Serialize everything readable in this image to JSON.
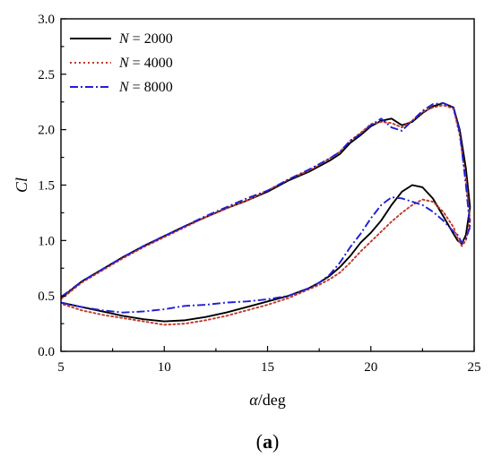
{
  "chart_data": {
    "type": "line",
    "caption": "(a)",
    "xlabel": {
      "symbol": "α",
      "unit": "/deg"
    },
    "ylabel": "Cl",
    "xlim": [
      5,
      25
    ],
    "ylim": [
      0.0,
      3.0
    ],
    "xticks": [
      5,
      10,
      15,
      20,
      25
    ],
    "xtick_labels": [
      "5",
      "10",
      "15",
      "20",
      "25"
    ],
    "yticks": [
      0.0,
      0.5,
      1.0,
      1.5,
      2.0,
      2.5,
      3.0
    ],
    "ytick_labels": [
      "0.0",
      "0.5",
      "1.0",
      "1.5",
      "2.0",
      "2.5",
      "3.0"
    ],
    "grid": false,
    "legend_position": "top-left",
    "series": [
      {
        "name": "N = 2000",
        "legend_var": "N",
        "legend_value": "= 2000",
        "color": "#000000",
        "dash": "solid",
        "upstroke": {
          "x": [
            5.0,
            6,
            7,
            8,
            9,
            10,
            11,
            12,
            13,
            14,
            15,
            16,
            17,
            18,
            18.5,
            19,
            19.5,
            20,
            20.5,
            21,
            21.5,
            22,
            22.5,
            23,
            23.5,
            24.0,
            24.3,
            24.6,
            24.8
          ],
          "y": [
            0.48,
            0.63,
            0.74,
            0.85,
            0.95,
            1.04,
            1.13,
            1.21,
            1.29,
            1.36,
            1.44,
            1.54,
            1.62,
            1.72,
            1.78,
            1.88,
            1.95,
            2.03,
            2.08,
            2.1,
            2.04,
            2.07,
            2.15,
            2.21,
            2.24,
            2.2,
            2.0,
            1.65,
            1.3
          ]
        },
        "downstroke": {
          "x": [
            24.8,
            24.6,
            24.4,
            24.2,
            24.0,
            23.5,
            23.0,
            22.5,
            22.0,
            21.5,
            21.0,
            20.5,
            20.0,
            19.5,
            19.0,
            18.5,
            18.0,
            17.5,
            17.0,
            16.0,
            15.0,
            14.0,
            13.0,
            12.0,
            11.0,
            10.0,
            9.0,
            8.0,
            7.0,
            6.0,
            5.0
          ],
          "y": [
            1.3,
            1.05,
            0.97,
            1.0,
            1.06,
            1.22,
            1.38,
            1.48,
            1.5,
            1.44,
            1.32,
            1.18,
            1.07,
            0.98,
            0.86,
            0.76,
            0.68,
            0.62,
            0.57,
            0.5,
            0.45,
            0.4,
            0.35,
            0.31,
            0.28,
            0.27,
            0.29,
            0.32,
            0.36,
            0.4,
            0.44
          ]
        }
      },
      {
        "name": "N = 4000",
        "legend_var": "N",
        "legend_value": "= 4000",
        "color": "#c0392b",
        "dash": "dotted",
        "upstroke": {
          "x": [
            5.0,
            6,
            7,
            8,
            9,
            10,
            11,
            12,
            13,
            14,
            15,
            16,
            17,
            18,
            18.5,
            19,
            19.5,
            20,
            20.5,
            21,
            21.5,
            22,
            22.5,
            23,
            23.5,
            24.0,
            24.3,
            24.6,
            24.8
          ],
          "y": [
            0.47,
            0.62,
            0.73,
            0.84,
            0.94,
            1.03,
            1.12,
            1.21,
            1.29,
            1.36,
            1.45,
            1.55,
            1.63,
            1.74,
            1.8,
            1.9,
            1.97,
            2.05,
            2.07,
            2.06,
            2.02,
            2.08,
            2.16,
            2.2,
            2.22,
            2.19,
            1.95,
            1.55,
            1.18
          ]
        },
        "downstroke": {
          "x": [
            24.8,
            24.6,
            24.4,
            24.2,
            24.0,
            23.5,
            23.0,
            22.5,
            22.0,
            21.5,
            21.0,
            20.5,
            20.0,
            19.5,
            19.0,
            18.5,
            18.0,
            17.5,
            17.0,
            16.0,
            15.0,
            14.0,
            13.0,
            12.0,
            11.0,
            10.0,
            9.0,
            8.0,
            7.0,
            6.0,
            5.0
          ],
          "y": [
            1.18,
            1.0,
            0.95,
            1.02,
            1.12,
            1.26,
            1.35,
            1.37,
            1.32,
            1.25,
            1.17,
            1.08,
            0.99,
            0.9,
            0.8,
            0.71,
            0.65,
            0.6,
            0.56,
            0.48,
            0.42,
            0.37,
            0.32,
            0.28,
            0.25,
            0.24,
            0.27,
            0.3,
            0.33,
            0.37,
            0.43
          ]
        }
      },
      {
        "name": "N = 8000",
        "legend_var": "N",
        "legend_value": "= 8000",
        "color": "#1f1fd6",
        "dash": "dashdot",
        "upstroke": {
          "x": [
            5.0,
            6,
            7,
            8,
            9,
            10,
            11,
            12,
            13,
            14,
            15,
            16,
            17,
            18,
            18.5,
            19,
            19.5,
            20,
            20.5,
            21,
            21.5,
            22,
            22.5,
            23,
            23.5,
            24.0,
            24.3,
            24.6,
            24.8
          ],
          "y": [
            0.49,
            0.63,
            0.74,
            0.85,
            0.95,
            1.04,
            1.13,
            1.22,
            1.3,
            1.38,
            1.45,
            1.55,
            1.64,
            1.74,
            1.8,
            1.9,
            1.96,
            2.04,
            2.1,
            2.02,
            1.99,
            2.08,
            2.17,
            2.23,
            2.24,
            2.2,
            1.98,
            1.5,
            1.12
          ]
        },
        "downstroke": {
          "x": [
            24.8,
            24.6,
            24.4,
            24.2,
            24.0,
            23.5,
            23.0,
            22.5,
            22.0,
            21.5,
            21.0,
            20.5,
            20.0,
            19.5,
            19.0,
            18.5,
            18.0,
            17.5,
            17.0,
            16.0,
            15.0,
            14.0,
            13.0,
            12.0,
            11.0,
            10.0,
            9.0,
            8.0,
            7.0,
            6.0,
            5.0
          ],
          "y": [
            1.12,
            1.02,
            0.98,
            1.05,
            1.08,
            1.18,
            1.26,
            1.32,
            1.35,
            1.38,
            1.39,
            1.32,
            1.2,
            1.06,
            0.94,
            0.8,
            0.69,
            0.62,
            0.57,
            0.5,
            0.47,
            0.45,
            0.44,
            0.42,
            0.41,
            0.38,
            0.36,
            0.35,
            0.37,
            0.4,
            0.44
          ]
        }
      }
    ]
  }
}
